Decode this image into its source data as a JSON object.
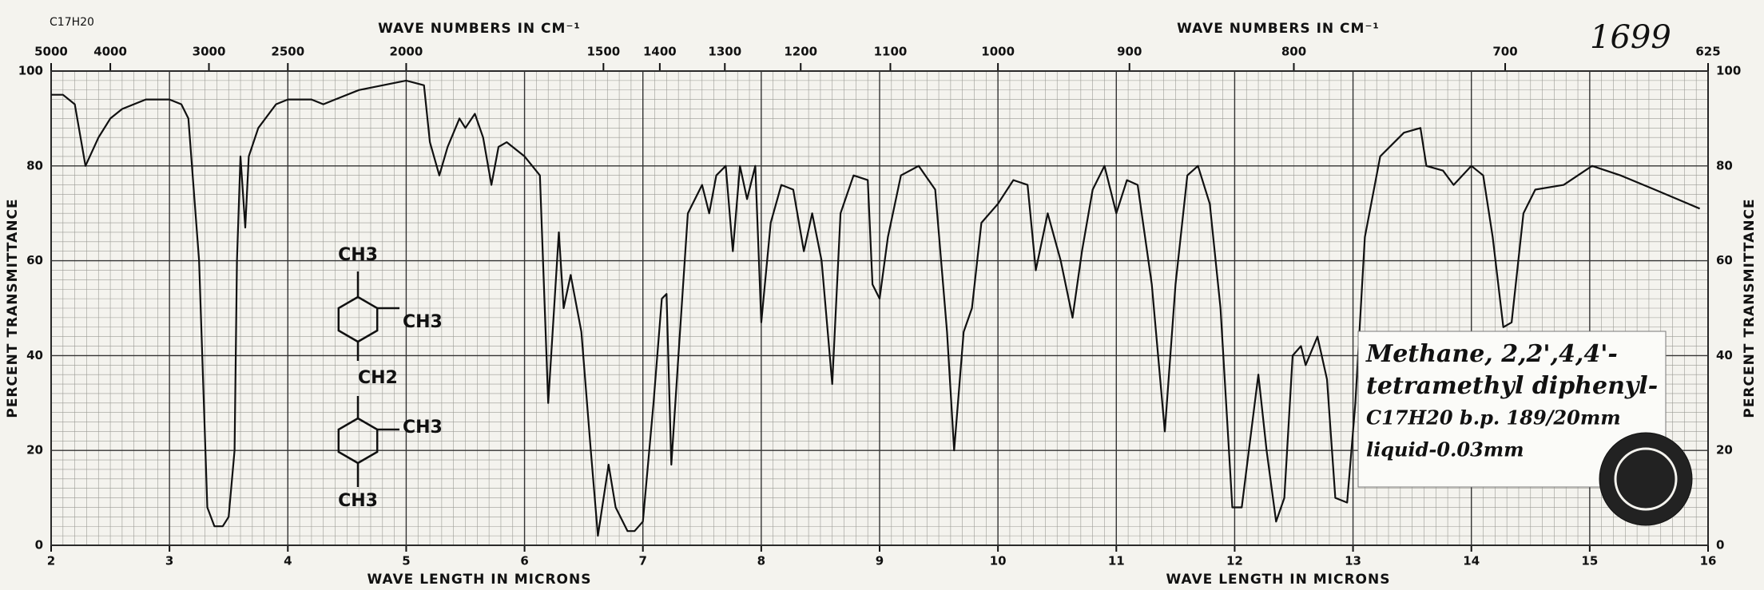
{
  "chart_data": {
    "type": "line",
    "x_label": "WAVE LENGTH IN MICRONS",
    "x2_label": "WAVE NUMBERS IN CM⁻¹",
    "y_label": "PERCENT TRANSMITTANCE",
    "formula": "C17H20",
    "note": "1699",
    "annotation": [
      "Methane, 2,2',4,4'-",
      "tetramethyl diphenyl-",
      "C17H20  b.p. 189/20mm",
      "liquid-0.03mm"
    ],
    "structure_labels": [
      "CH3",
      "CH3",
      "CH2",
      "CH3",
      "CH3"
    ],
    "xlim": [
      2,
      16
    ],
    "xticks": [
      2,
      3,
      4,
      5,
      6,
      7,
      8,
      9,
      10,
      11,
      12,
      13,
      14,
      15,
      16
    ],
    "x2ticks": [
      5000,
      4000,
      3000,
      2500,
      2000,
      1500,
      1400,
      1300,
      1200,
      1100,
      1000,
      900,
      800,
      700,
      625
    ],
    "ylim": [
      0,
      100
    ],
    "yticks": [
      0,
      20,
      40,
      60,
      80,
      100
    ],
    "grid": true,
    "series": [
      {
        "name": "spectrum",
        "color": "#111111",
        "x": [
          2.0,
          2.1,
          2.2,
          2.29,
          2.4,
          2.5,
          2.6,
          2.8,
          3.0,
          3.1,
          3.16,
          3.25,
          3.32,
          3.38,
          3.45,
          3.5,
          3.55,
          3.57,
          3.6,
          3.64,
          3.67,
          3.75,
          3.9,
          4.0,
          4.2,
          4.3,
          4.4,
          4.6,
          5.0,
          5.15,
          5.2,
          5.28,
          5.35,
          5.45,
          5.5,
          5.58,
          5.65,
          5.72,
          5.78,
          5.85,
          5.95,
          6.0,
          6.13,
          6.2,
          6.29,
          6.33,
          6.39,
          6.48,
          6.56,
          6.62,
          6.71,
          6.77,
          6.87,
          6.93,
          7.0,
          7.09,
          7.16,
          7.2,
          7.24,
          7.3,
          7.38,
          7.5,
          7.56,
          7.62,
          7.7,
          7.76,
          7.82,
          7.88,
          7.95,
          8.0,
          8.08,
          8.17,
          8.27,
          8.36,
          8.43,
          8.51,
          8.6,
          8.67,
          8.78,
          8.9,
          8.94,
          9.0,
          9.07,
          9.18,
          9.33,
          9.47,
          9.57,
          9.63,
          9.71,
          9.78,
          9.86,
          10.0,
          10.13,
          10.25,
          10.32,
          10.42,
          10.53,
          10.63,
          10.71,
          10.8,
          10.9,
          11.0,
          11.09,
          11.18,
          11.3,
          11.41,
          11.5,
          11.6,
          11.69,
          11.79,
          11.88,
          11.98,
          12.06,
          12.17,
          12.2,
          12.27,
          12.35,
          12.42,
          12.49,
          12.56,
          12.6,
          12.7,
          12.78,
          12.85,
          12.95,
          13.02,
          13.1,
          13.23,
          13.43,
          13.57,
          13.62,
          13.76,
          13.85,
          14.0,
          14.1,
          14.18,
          14.27,
          14.34,
          14.44,
          14.54,
          14.78,
          15.02,
          15.26,
          15.55,
          15.93
        ],
        "values": [
          95,
          95,
          93,
          80,
          86,
          90,
          92,
          94,
          94,
          93,
          90,
          60,
          8,
          4,
          4,
          6,
          20,
          60,
          82,
          67,
          82,
          88,
          93,
          94,
          94,
          93,
          94,
          96,
          98,
          97,
          85,
          78,
          84,
          90,
          88,
          91,
          86,
          76,
          84,
          85,
          83,
          82,
          78,
          30,
          66,
          50,
          57,
          45,
          20,
          2,
          17,
          8,
          3,
          3,
          5,
          30,
          52,
          53,
          17,
          40,
          70,
          76,
          70,
          78,
          80,
          62,
          80,
          73,
          80,
          47,
          68,
          76,
          75,
          62,
          70,
          60,
          34,
          70,
          78,
          77,
          55,
          52,
          65,
          78,
          80,
          75,
          45,
          20,
          45,
          50,
          68,
          72,
          77,
          76,
          58,
          70,
          60,
          48,
          62,
          75,
          80,
          70,
          77,
          76,
          55,
          24,
          55,
          78,
          80,
          72,
          50,
          8,
          8,
          30,
          36,
          20,
          5,
          10,
          40,
          42,
          38,
          44,
          35,
          10,
          9,
          30,
          65,
          82,
          87,
          88,
          80,
          79,
          76,
          80,
          78,
          65,
          46,
          47,
          70,
          75,
          76,
          80,
          78,
          75,
          71
        ]
      }
    ]
  }
}
